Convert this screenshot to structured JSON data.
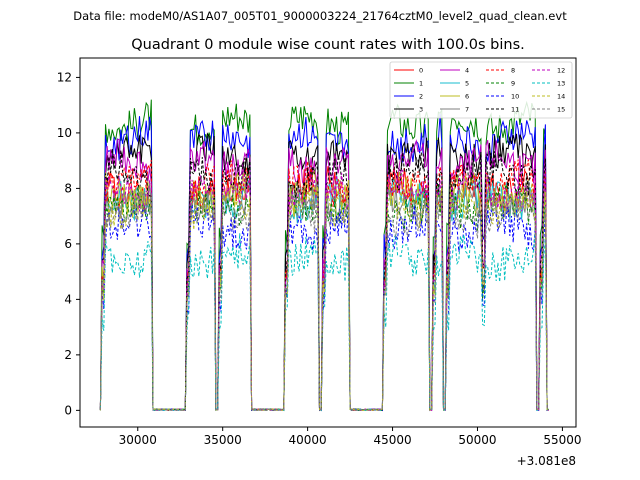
{
  "chart_data": {
    "type": "line",
    "suptitle": "Data file: modeM0/AS1A07_005T01_9000003224_21764cztM0_level2_quad_clean.evt",
    "title": "Quadrant 0 module wise count rates with 100.0s bins.",
    "xlabel": "",
    "ylabel": "",
    "x_offset_label": "+3.081e8",
    "x_ticks": [
      30000,
      35000,
      40000,
      45000,
      50000,
      55000
    ],
    "x_tick_labels": [
      "30000",
      "35000",
      "40000",
      "45000",
      "50000",
      "55000"
    ],
    "y_ticks": [
      0,
      2,
      4,
      6,
      8,
      10,
      12
    ],
    "y_tick_labels": [
      "0",
      "2",
      "4",
      "6",
      "8",
      "10",
      "12"
    ],
    "xlim": [
      26600,
      55800
    ],
    "ylim": [
      -0.6,
      12.7
    ],
    "legend_position": "top-right",
    "time_segments": [
      [
        27900,
        30800
      ],
      [
        32900,
        34500
      ],
      [
        34800,
        36600
      ],
      [
        38700,
        40600
      ],
      [
        40900,
        42400
      ],
      [
        44500,
        47100
      ],
      [
        47400,
        47900
      ],
      [
        48200,
        50300
      ],
      [
        50300,
        53400
      ],
      [
        53700,
        54050
      ]
    ],
    "series": [
      {
        "name": "0",
        "color": "#ff0000",
        "dash": "solid",
        "level": 8.0
      },
      {
        "name": "1",
        "color": "#008000",
        "dash": "solid",
        "level": 10.4
      },
      {
        "name": "2",
        "color": "#0000ff",
        "dash": "solid",
        "level": 9.8
      },
      {
        "name": "3",
        "color": "#000000",
        "dash": "solid",
        "level": 9.2
      },
      {
        "name": "4",
        "color": "#bf00bf",
        "dash": "solid",
        "level": 8.9
      },
      {
        "name": "5",
        "color": "#17becf",
        "dash": "solid",
        "level": 7.6
      },
      {
        "name": "6",
        "color": "#bcbd22",
        "dash": "solid",
        "level": 7.8
      },
      {
        "name": "7",
        "color": "#7f7f7f",
        "dash": "solid",
        "level": 7.5
      },
      {
        "name": "8",
        "color": "#ff0000",
        "dash": "dashed",
        "level": 8.2
      },
      {
        "name": "9",
        "color": "#008000",
        "dash": "dashed",
        "level": 7.3
      },
      {
        "name": "10",
        "color": "#0000ff",
        "dash": "dashed",
        "level": 6.6
      },
      {
        "name": "11",
        "color": "#000000",
        "dash": "dashed",
        "level": 8.5
      },
      {
        "name": "12",
        "color": "#bf00bf",
        "dash": "dashed",
        "level": 7.9
      },
      {
        "name": "13",
        "color": "#00bfbf",
        "dash": "dashed",
        "level": 5.5
      },
      {
        "name": "14",
        "color": "#bcbd22",
        "dash": "dashed",
        "level": 7.4
      },
      {
        "name": "15",
        "color": "#7f7f7f",
        "dash": "dashed",
        "level": 7.1
      }
    ]
  }
}
